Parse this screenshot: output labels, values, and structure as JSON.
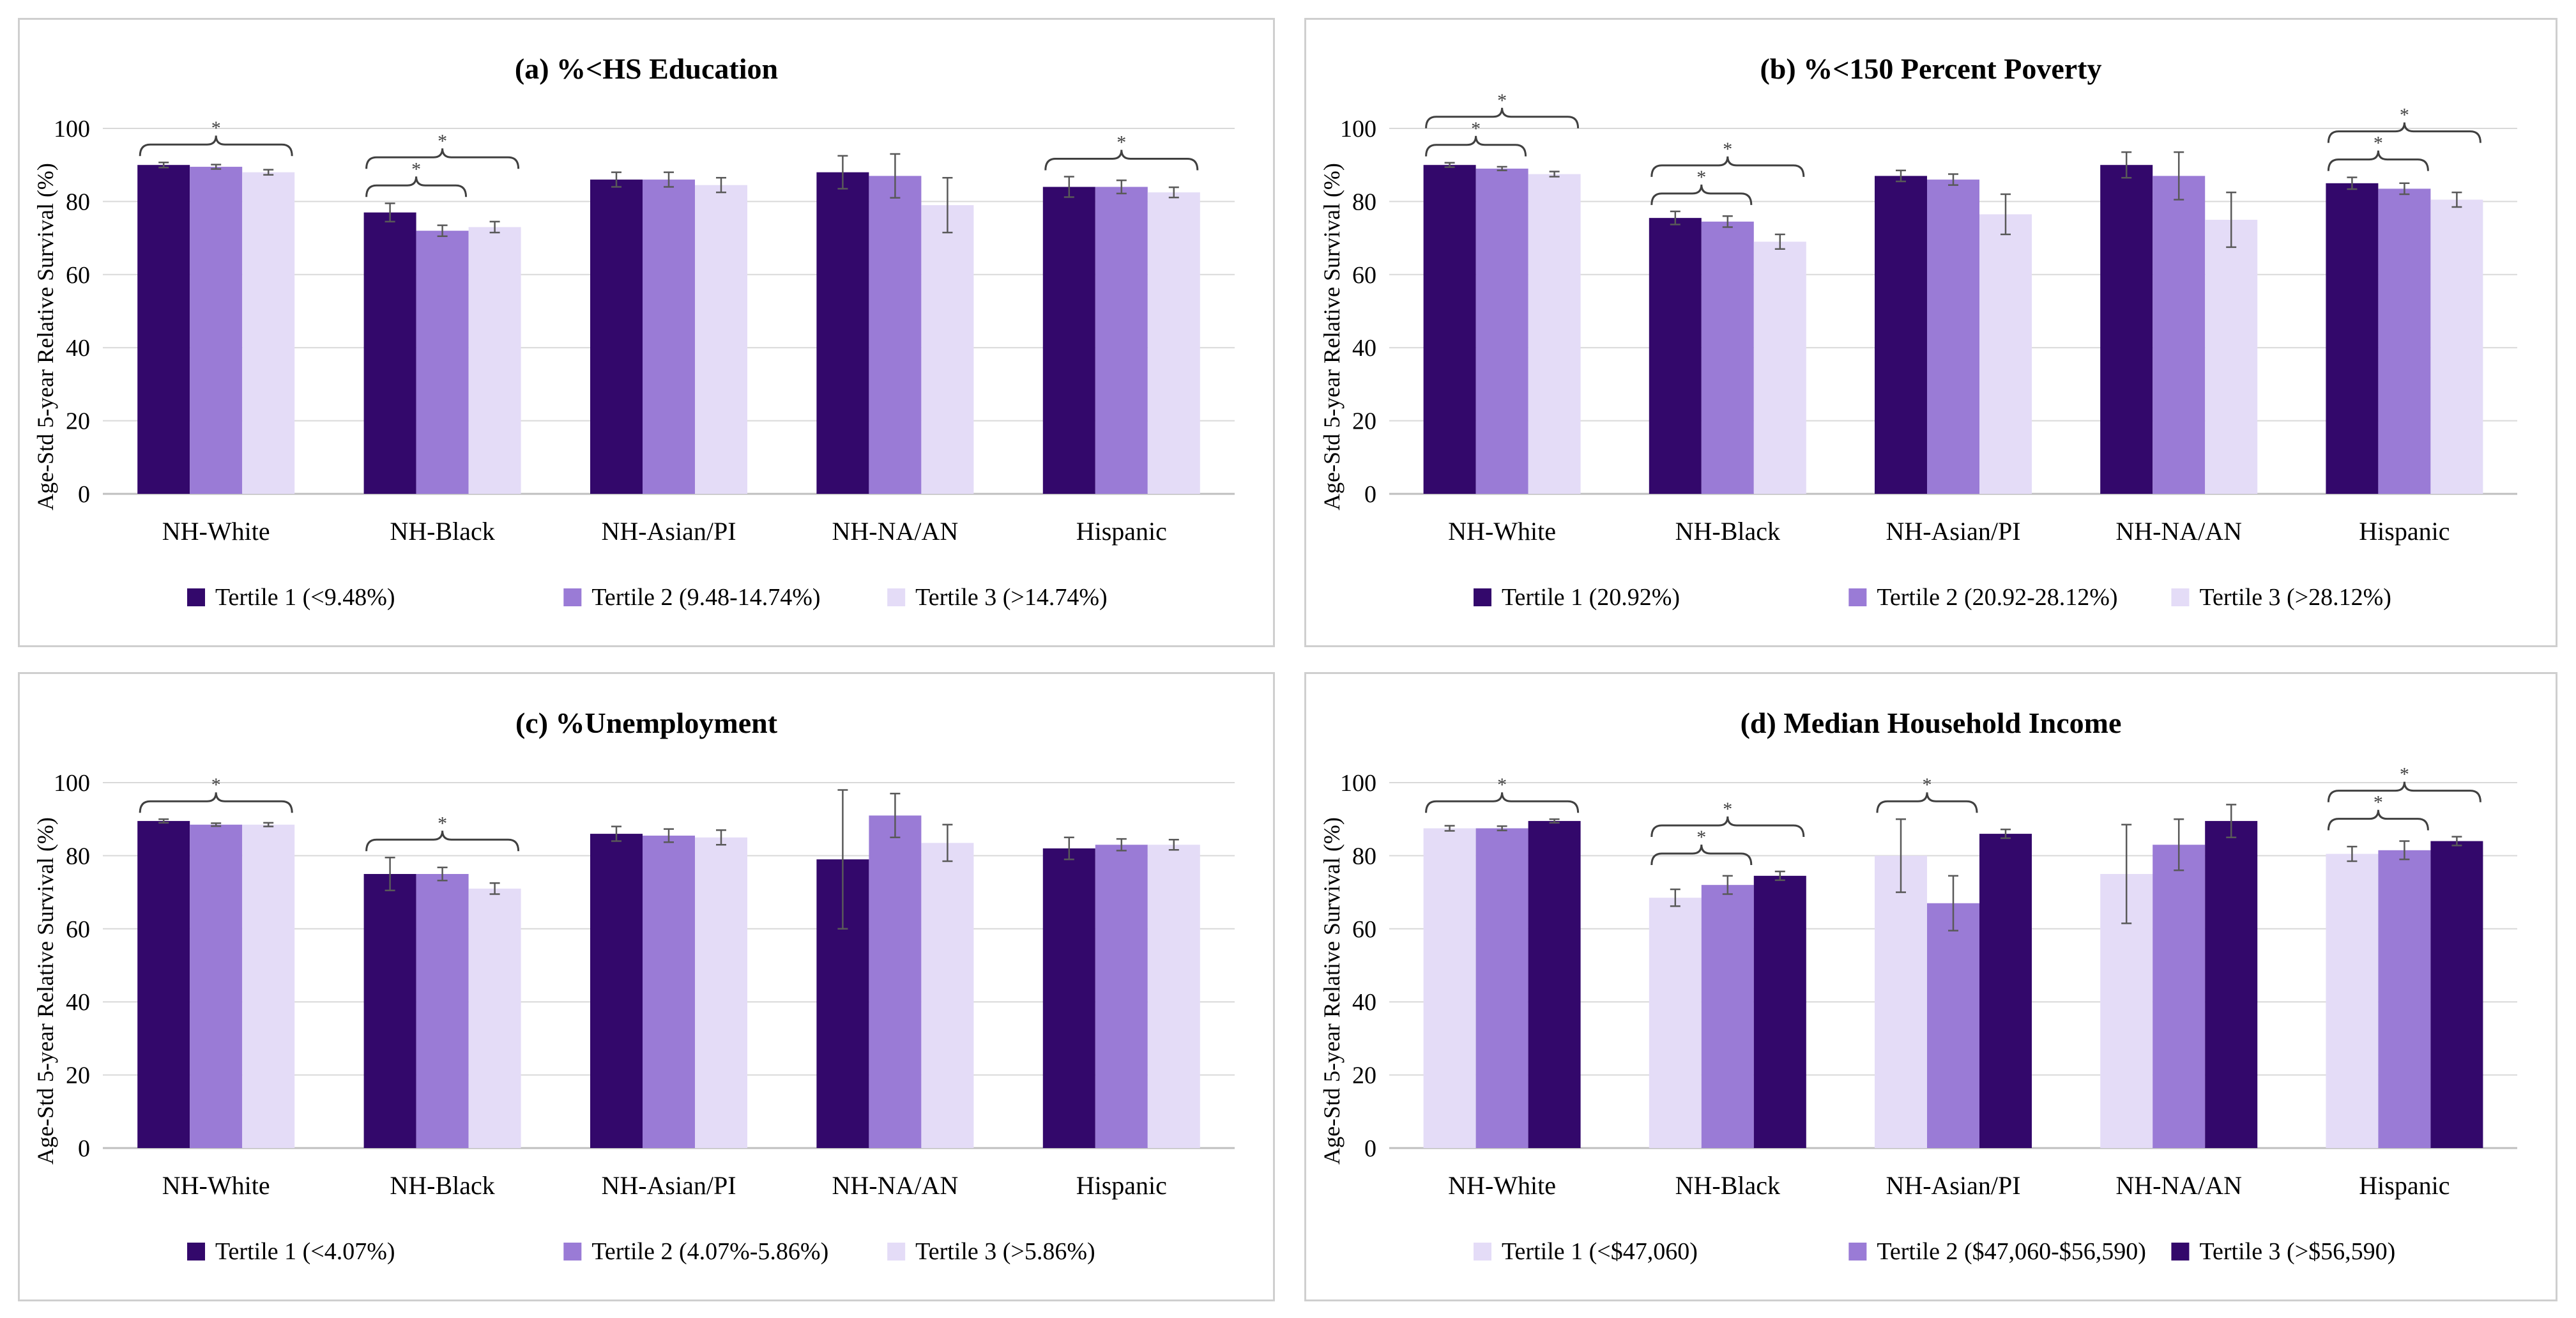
{
  "colors": {
    "dark": "#33086b",
    "mid": "#9a7bd6",
    "light": "#e4dcf7",
    "grid": "#d9d9d9",
    "axis": "#bfbfbf",
    "text": "#000000",
    "error": "#595959"
  },
  "chart_data": [
    {
      "type": "bar",
      "title": "(a) %<HS Education",
      "ylabel": "Age-Std 5-year Relative Survival (%)",
      "ylim": [
        0,
        100
      ],
      "yticks": [
        "0",
        "20",
        "40",
        "60",
        "80",
        "100"
      ],
      "categories": [
        "NH-White",
        "NH-Black",
        "NH-Asian/PI",
        "NH-NA/AN",
        "Hispanic"
      ],
      "series": [
        {
          "name": "Tertile 1 (<9.48%)",
          "color": "dark",
          "values": [
            90,
            77,
            86,
            88,
            84
          ],
          "errors": [
            0.7,
            2.5,
            2,
            4.5,
            2.8
          ]
        },
        {
          "name": "Tertile 2 (9.48-14.74%)",
          "color": "mid",
          "values": [
            89.5,
            72,
            86,
            87,
            84
          ],
          "errors": [
            0.6,
            1.5,
            2,
            6,
            1.8
          ]
        },
        {
          "name": "Tertile 3 (>14.74%)",
          "color": "light",
          "values": [
            88,
            73,
            84.5,
            79,
            82.5
          ],
          "errors": [
            0.7,
            1.5,
            2,
            7.5,
            1.4
          ]
        }
      ],
      "significance": [
        {
          "category": 0,
          "from": 0,
          "to": 2,
          "level": 0,
          "label": "*"
        },
        {
          "category": 1,
          "from": 0,
          "to": 1,
          "level": 0,
          "label": "*"
        },
        {
          "category": 1,
          "from": 0,
          "to": 2,
          "level": 1,
          "label": "*"
        },
        {
          "category": 4,
          "from": 0,
          "to": 2,
          "level": 0,
          "label": "*"
        }
      ]
    },
    {
      "type": "bar",
      "title": "(b) %<150 Percent Poverty",
      "ylabel": "Age-Std 5-year Relative Survival (%)",
      "ylim": [
        0,
        100
      ],
      "yticks": [
        "0",
        "20",
        "40",
        "60",
        "80",
        "100"
      ],
      "categories": [
        "NH-White",
        "NH-Black",
        "NH-Asian/PI",
        "NH-NA/AN",
        "Hispanic"
      ],
      "series": [
        {
          "name": "Tertile 1 (20.92%)",
          "color": "dark",
          "values": [
            90,
            75.5,
            87,
            90,
            85
          ],
          "errors": [
            0.6,
            1.8,
            1.5,
            3.5,
            1.6
          ]
        },
        {
          "name": "Tertile 2 (20.92-28.12%)",
          "color": "mid",
          "values": [
            89,
            74.5,
            86,
            87,
            83.5
          ],
          "errors": [
            0.5,
            1.5,
            1.5,
            6.5,
            1.5
          ]
        },
        {
          "name": "Tertile 3 (>28.12%)",
          "color": "light",
          "values": [
            87.5,
            69,
            76.5,
            75,
            80.5
          ],
          "errors": [
            0.7,
            2,
            5.5,
            7.5,
            2
          ]
        }
      ],
      "significance": [
        {
          "category": 0,
          "from": 0,
          "to": 1,
          "level": 0,
          "label": "*"
        },
        {
          "category": 0,
          "from": 0,
          "to": 2,
          "level": 1,
          "label": "*"
        },
        {
          "category": 1,
          "from": 0,
          "to": 1,
          "level": 0,
          "label": "*"
        },
        {
          "category": 1,
          "from": 0,
          "to": 2,
          "level": 1,
          "label": "*"
        },
        {
          "category": 4,
          "from": 0,
          "to": 1,
          "level": 0,
          "label": "*"
        },
        {
          "category": 4,
          "from": 0,
          "to": 2,
          "level": 1,
          "label": "*"
        }
      ]
    },
    {
      "type": "bar",
      "title": "(c) %Unemployment",
      "ylabel": "Age-Std 5-year Relative Survival (%)",
      "ylim": [
        0,
        100
      ],
      "yticks": [
        "0",
        "20",
        "40",
        "60",
        "80",
        "100"
      ],
      "categories": [
        "NH-White",
        "NH-Black",
        "NH-Asian/PI",
        "NH-NA/AN",
        "Hispanic"
      ],
      "series": [
        {
          "name": "Tertile 1 (<4.07%)",
          "color": "dark",
          "values": [
            89.5,
            75,
            86,
            79,
            82
          ],
          "errors": [
            0.5,
            4.5,
            2,
            19,
            3
          ]
        },
        {
          "name": "Tertile 2 (4.07%-5.86%)",
          "color": "mid",
          "values": [
            88.5,
            75,
            85.5,
            91,
            83
          ],
          "errors": [
            0.4,
            1.8,
            1.8,
            6,
            1.6
          ]
        },
        {
          "name": "Tertile 3 (>5.86%)",
          "color": "light",
          "values": [
            88.5,
            71,
            85,
            83.5,
            83
          ],
          "errors": [
            0.5,
            1.5,
            2,
            5,
            1.4
          ]
        }
      ],
      "significance": [
        {
          "category": 0,
          "from": 0,
          "to": 2,
          "level": 0,
          "label": "*"
        },
        {
          "category": 1,
          "from": 0,
          "to": 2,
          "level": 0,
          "label": "*"
        }
      ]
    },
    {
      "type": "bar",
      "title": "(d) Median Household Income",
      "ylabel": "Age-Std 5-year Relative Survival (%)",
      "ylim": [
        0,
        100
      ],
      "yticks": [
        "0",
        "20",
        "40",
        "60",
        "80",
        "100"
      ],
      "categories": [
        "NH-White",
        "NH-Black",
        "NH-Asian/PI",
        "NH-NA/AN",
        "Hispanic"
      ],
      "series": [
        {
          "name": "Tertile 1 (<$47,060)",
          "color": "light",
          "values": [
            87.5,
            68.5,
            80,
            75,
            80.5
          ],
          "errors": [
            0.7,
            2.3,
            10,
            13.5,
            2
          ]
        },
        {
          "name": "Tertile 2 ($47,060-$56,590)",
          "color": "mid",
          "values": [
            87.5,
            72,
            67,
            83,
            81.5
          ],
          "errors": [
            0.6,
            2.5,
            7.5,
            7,
            2.5
          ]
        },
        {
          "name": "Tertile 3 (>$56,590)",
          "color": "dark",
          "values": [
            89.5,
            74.5,
            86,
            89.5,
            84
          ],
          "errors": [
            0.5,
            1.2,
            1.2,
            4.5,
            1.2
          ]
        }
      ],
      "significance": [
        {
          "category": 0,
          "from": 0,
          "to": 2,
          "level": 0,
          "label": "*"
        },
        {
          "category": 1,
          "from": 0,
          "to": 1,
          "level": 0,
          "label": "*"
        },
        {
          "category": 1,
          "from": 0,
          "to": 2,
          "level": 1,
          "label": "*"
        },
        {
          "category": 2,
          "from": 0,
          "to": 1,
          "level": 0,
          "label": "*"
        },
        {
          "category": 4,
          "from": 0,
          "to": 1,
          "level": 0,
          "label": "*"
        },
        {
          "category": 4,
          "from": 0,
          "to": 2,
          "level": 1,
          "label": "*"
        }
      ]
    }
  ]
}
